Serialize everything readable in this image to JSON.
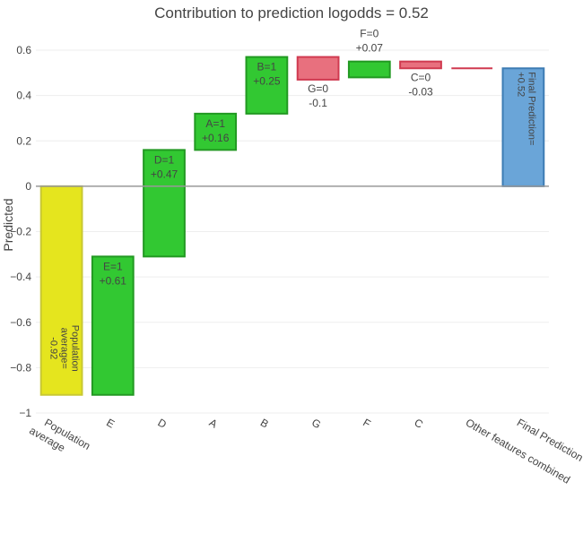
{
  "chart_data": {
    "type": "bar",
    "subtype": "waterfall",
    "title": "Contribution to prediction logodds = 0.52",
    "xlabel": "",
    "ylabel": "Predicted",
    "ylim": [
      -1,
      0.6
    ],
    "yticks": [
      {
        "value": 0.6,
        "label": "0.6"
      },
      {
        "value": 0.4,
        "label": "0.4"
      },
      {
        "value": 0.2,
        "label": "0.2"
      },
      {
        "value": 0,
        "label": "0"
      },
      {
        "value": -0.2,
        "label": "−0.2"
      },
      {
        "value": -0.4,
        "label": "−0.4"
      },
      {
        "value": -0.6,
        "label": "−0.6"
      },
      {
        "value": -0.8,
        "label": "−0.8"
      },
      {
        "value": -1,
        "label": "−1"
      }
    ],
    "grid": true,
    "legend": "none",
    "categories": [
      "Population average",
      "E",
      "D",
      "A",
      "B",
      "G",
      "F",
      "C",
      "Other features combined",
      "Final Prediction"
    ],
    "bars": [
      {
        "category": "Population average",
        "base": 0,
        "value": -0.92,
        "kind": "base",
        "label_lines": [
          "Population",
          "average=",
          "-0.92"
        ],
        "label_rotated": true
      },
      {
        "category": "E",
        "base": -0.92,
        "value": 0.61,
        "kind": "positive",
        "label_lines": [
          "E=1",
          "+0.61"
        ]
      },
      {
        "category": "D",
        "base": -0.31,
        "value": 0.47,
        "kind": "positive",
        "label_lines": [
          "D=1",
          "+0.47"
        ]
      },
      {
        "category": "A",
        "base": 0.16,
        "value": 0.16,
        "kind": "positive",
        "label_lines": [
          "A=1",
          "+0.16"
        ]
      },
      {
        "category": "B",
        "base": 0.32,
        "value": 0.25,
        "kind": "positive",
        "label_lines": [
          "B=1",
          "+0.25"
        ]
      },
      {
        "category": "G",
        "base": 0.57,
        "value": -0.1,
        "kind": "negative",
        "label_lines": [
          "G=0",
          "-0.1"
        ]
      },
      {
        "category": "F",
        "base": 0.48,
        "value": 0.07,
        "kind": "positive",
        "label_lines": [
          "F=0",
          "+0.07"
        ]
      },
      {
        "category": "C",
        "base": 0.55,
        "value": -0.03,
        "kind": "negative",
        "label_lines": [
          "C=0",
          "-0.03"
        ]
      },
      {
        "category": "Other features combined",
        "base": 0.52,
        "value": 0,
        "kind": "negative",
        "label_lines": []
      },
      {
        "category": "Final Prediction",
        "base": 0,
        "value": 0.52,
        "kind": "final",
        "label_lines": [
          "Final Prediction=",
          "+0.52"
        ],
        "label_rotated": true
      }
    ],
    "colors": {
      "base_fill": "#e5e51e",
      "base_stroke": "#c8c832",
      "positive_fill": "#32c832",
      "positive_stroke": "#229922",
      "negative_fill": "#e8707e",
      "negative_stroke": "#d03a50",
      "final_fill": "#6aa5d8",
      "final_stroke": "#3d7cb4",
      "grid": "#eeeeee",
      "zero_line": "#999999",
      "text": "#444444"
    }
  }
}
